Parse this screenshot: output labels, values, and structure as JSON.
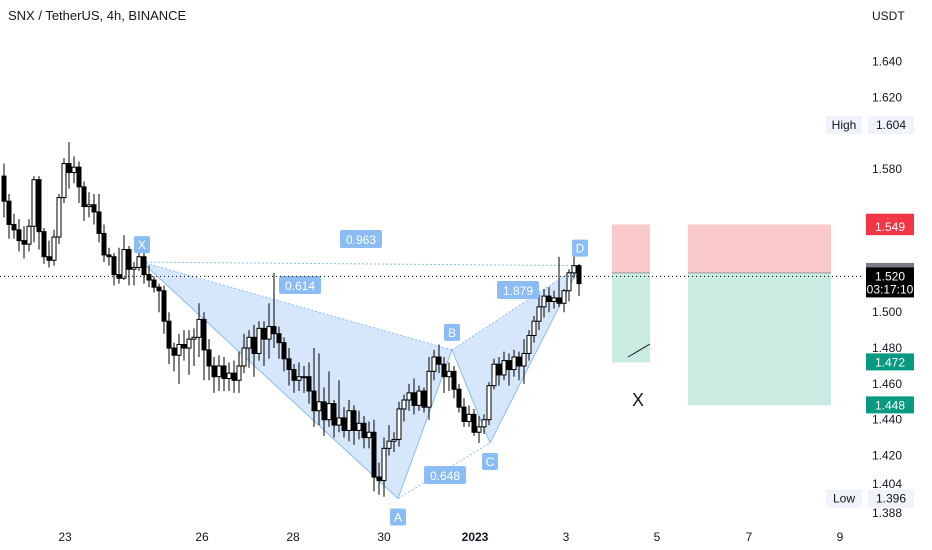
{
  "header": {
    "title": "SNX / TetherUS, 4h, BINANCE"
  },
  "axis": {
    "currency": "USDT",
    "y_ticks": [
      "1.640",
      "1.620",
      "1.580",
      "1.500",
      "1.480",
      "1.460",
      "1.440",
      "1.420",
      "1.404",
      "1.388"
    ],
    "x_ticks": [
      "23",
      "26",
      "28",
      "30",
      "2023",
      "3",
      "5",
      "7",
      "9"
    ]
  },
  "labels": {
    "high_label": "High",
    "high_value": "1.604",
    "low_label": "Low",
    "low_value": "1.396",
    "price_now": "1.520",
    "countdown": "03:17:10",
    "stop_upper": "1.550",
    "stop_lower": "1.549",
    "entry_upper": "1.523",
    "entry_lower": "1.522",
    "target_1": "1.472",
    "target_2": "1.448"
  },
  "pattern": {
    "points": [
      "X",
      "A",
      "B",
      "C",
      "D"
    ],
    "ratios": [
      "0.963",
      "0.614",
      "0.648",
      "1.879"
    ]
  },
  "colors": {
    "up": "#ffffff",
    "down": "#000000",
    "pattern_fill": "#cfe3fa",
    "pattern_label": "#8bbcf4",
    "risk_zone": "#f9c9cb",
    "reward_zone": "#c9ebe1",
    "stop_tag": "#f23645",
    "target_tag": "#089981",
    "entry_tag": "#787b86",
    "price_tag": "#000000"
  },
  "chart_data": {
    "type": "candlestick",
    "symbol": "SNX / TetherUS",
    "interval": "4h",
    "exchange": "BINANCE",
    "ylim": [
      1.384,
      1.652
    ],
    "candles": [
      [
        1.576,
        1.562,
        1.583,
        1.553
      ],
      [
        1.562,
        1.549,
        1.566,
        1.541
      ],
      [
        1.549,
        1.546,
        1.555,
        1.541
      ],
      [
        1.546,
        1.54,
        1.552,
        1.534
      ],
      [
        1.54,
        1.538,
        1.548,
        1.53
      ],
      [
        1.538,
        1.548,
        1.552,
        1.534
      ],
      [
        1.548,
        1.574,
        1.576,
        1.539
      ],
      [
        1.574,
        1.545,
        1.576,
        1.535
      ],
      [
        1.545,
        1.531,
        1.547,
        1.527
      ],
      [
        1.531,
        1.529,
        1.54,
        1.525
      ],
      [
        1.529,
        1.542,
        1.546,
        1.526
      ],
      [
        1.542,
        1.564,
        1.566,
        1.538
      ],
      [
        1.564,
        1.583,
        1.586,
        1.561
      ],
      [
        1.583,
        1.578,
        1.595,
        1.569
      ],
      [
        1.578,
        1.581,
        1.587,
        1.572
      ],
      [
        1.581,
        1.57,
        1.584,
        1.561
      ],
      [
        1.57,
        1.559,
        1.573,
        1.551
      ],
      [
        1.559,
        1.56,
        1.567,
        1.553
      ],
      [
        1.56,
        1.556,
        1.566,
        1.549
      ],
      [
        1.556,
        1.544,
        1.566,
        1.539
      ],
      [
        1.544,
        1.532,
        1.549,
        1.528
      ],
      [
        1.532,
        1.531,
        1.536,
        1.526
      ],
      [
        1.531,
        1.521,
        1.533,
        1.515
      ],
      [
        1.521,
        1.519,
        1.536,
        1.516
      ],
      [
        1.519,
        1.535,
        1.543,
        1.518
      ],
      [
        1.535,
        1.524,
        1.537,
        1.515
      ],
      [
        1.524,
        1.525,
        1.528,
        1.515
      ],
      [
        1.525,
        1.531,
        1.534,
        1.523
      ],
      [
        1.531,
        1.521,
        1.534,
        1.516
      ],
      [
        1.521,
        1.518,
        1.526,
        1.514
      ],
      [
        1.518,
        1.514,
        1.52,
        1.511
      ],
      [
        1.514,
        1.512,
        1.516,
        1.5
      ],
      [
        1.512,
        1.495,
        1.515,
        1.488
      ],
      [
        1.495,
        1.48,
        1.5,
        1.471
      ],
      [
        1.48,
        1.476,
        1.483,
        1.467
      ],
      [
        1.476,
        1.482,
        1.488,
        1.46
      ],
      [
        1.482,
        1.48,
        1.49,
        1.473
      ],
      [
        1.48,
        1.485,
        1.49,
        1.465
      ],
      [
        1.485,
        1.486,
        1.491,
        1.47
      ],
      [
        1.486,
        1.496,
        1.505,
        1.475
      ],
      [
        1.496,
        1.479,
        1.5,
        1.462
      ],
      [
        1.479,
        1.47,
        1.485,
        1.462
      ],
      [
        1.47,
        1.464,
        1.475,
        1.455
      ],
      [
        1.464,
        1.47,
        1.476,
        1.456
      ],
      [
        1.47,
        1.463,
        1.475,
        1.456
      ],
      [
        1.463,
        1.466,
        1.472,
        1.456
      ],
      [
        1.466,
        1.462,
        1.473,
        1.455
      ],
      [
        1.462,
        1.47,
        1.478,
        1.455
      ],
      [
        1.47,
        1.48,
        1.488,
        1.466
      ],
      [
        1.48,
        1.486,
        1.49,
        1.469
      ],
      [
        1.486,
        1.477,
        1.493,
        1.464
      ],
      [
        1.477,
        1.491,
        1.495,
        1.473
      ],
      [
        1.491,
        1.485,
        1.495,
        1.47
      ],
      [
        1.485,
        1.492,
        1.505,
        1.474
      ],
      [
        1.492,
        1.488,
        1.522,
        1.48
      ],
      [
        1.488,
        1.483,
        1.492,
        1.474
      ],
      [
        1.483,
        1.474,
        1.486,
        1.467
      ],
      [
        1.474,
        1.468,
        1.48,
        1.459
      ],
      [
        1.468,
        1.462,
        1.471,
        1.455
      ],
      [
        1.462,
        1.464,
        1.472,
        1.456
      ],
      [
        1.464,
        1.464,
        1.47,
        1.455
      ],
      [
        1.464,
        1.456,
        1.472,
        1.449
      ],
      [
        1.456,
        1.445,
        1.48,
        1.436
      ],
      [
        1.445,
        1.45,
        1.477,
        1.437
      ],
      [
        1.45,
        1.44,
        1.458,
        1.431
      ],
      [
        1.44,
        1.449,
        1.467,
        1.436
      ],
      [
        1.449,
        1.437,
        1.451,
        1.43
      ],
      [
        1.437,
        1.441,
        1.462,
        1.433
      ],
      [
        1.441,
        1.434,
        1.447,
        1.43
      ],
      [
        1.434,
        1.445,
        1.451,
        1.428
      ],
      [
        1.445,
        1.434,
        1.448,
        1.426
      ],
      [
        1.434,
        1.438,
        1.445,
        1.429
      ],
      [
        1.438,
        1.43,
        1.442,
        1.424
      ],
      [
        1.43,
        1.433,
        1.439,
        1.424
      ],
      [
        1.433,
        1.408,
        1.44,
        1.4
      ],
      [
        1.408,
        1.406,
        1.416,
        1.398
      ],
      [
        1.406,
        1.424,
        1.43,
        1.397
      ],
      [
        1.424,
        1.428,
        1.437,
        1.42
      ],
      [
        1.428,
        1.429,
        1.433,
        1.422
      ],
      [
        1.429,
        1.446,
        1.45,
        1.425
      ],
      [
        1.446,
        1.451,
        1.454,
        1.439
      ],
      [
        1.451,
        1.455,
        1.46,
        1.445
      ],
      [
        1.455,
        1.448,
        1.463,
        1.443
      ],
      [
        1.448,
        1.456,
        1.459,
        1.445
      ],
      [
        1.456,
        1.447,
        1.458,
        1.444
      ],
      [
        1.447,
        1.467,
        1.475,
        1.44
      ],
      [
        1.467,
        1.475,
        1.479,
        1.462
      ],
      [
        1.475,
        1.471,
        1.482,
        1.466
      ],
      [
        1.471,
        1.464,
        1.475,
        1.455
      ],
      [
        1.464,
        1.467,
        1.472,
        1.456
      ],
      [
        1.467,
        1.457,
        1.47,
        1.452
      ],
      [
        1.457,
        1.447,
        1.46,
        1.444
      ],
      [
        1.447,
        1.439,
        1.452,
        1.436
      ],
      [
        1.439,
        1.443,
        1.448,
        1.436
      ],
      [
        1.443,
        1.433,
        1.446,
        1.431
      ],
      [
        1.433,
        1.436,
        1.442,
        1.427
      ],
      [
        1.436,
        1.44,
        1.443,
        1.432
      ],
      [
        1.44,
        1.459,
        1.461,
        1.437
      ],
      [
        1.459,
        1.471,
        1.474,
        1.457
      ],
      [
        1.471,
        1.465,
        1.475,
        1.459
      ],
      [
        1.465,
        1.473,
        1.478,
        1.462
      ],
      [
        1.473,
        1.468,
        1.477,
        1.459
      ],
      [
        1.468,
        1.475,
        1.479,
        1.464
      ],
      [
        1.475,
        1.47,
        1.478,
        1.462
      ],
      [
        1.47,
        1.477,
        1.485,
        1.46
      ],
      [
        1.477,
        1.487,
        1.49,
        1.473
      ],
      [
        1.487,
        1.495,
        1.498,
        1.483
      ],
      [
        1.495,
        1.503,
        1.51,
        1.49
      ],
      [
        1.503,
        1.509,
        1.513,
        1.497
      ],
      [
        1.509,
        1.506,
        1.514,
        1.5
      ],
      [
        1.506,
        1.508,
        1.512,
        1.502
      ],
      [
        1.508,
        1.505,
        1.531,
        1.503
      ],
      [
        1.505,
        1.512,
        1.513,
        1.5
      ],
      [
        1.512,
        1.522,
        1.524,
        1.506
      ],
      [
        1.522,
        1.526,
        1.535,
        1.519
      ],
      [
        1.526,
        1.516,
        1.527,
        1.509
      ]
    ],
    "harmonic_pattern": {
      "points": [
        {
          "label": "X",
          "price": 1.528
        },
        {
          "label": "A",
          "price": 1.396
        },
        {
          "label": "B",
          "price": 1.479
        },
        {
          "label": "C",
          "price": 1.427
        },
        {
          "label": "D",
          "price": 1.526
        }
      ],
      "ratios": [
        "0.963",
        "0.614",
        "0.648",
        "1.879"
      ]
    },
    "positions": [
      {
        "type": "short",
        "entry": 1.522,
        "stop": 1.549,
        "target": 1.472
      },
      {
        "type": "short",
        "entry": 1.522,
        "stop": 1.549,
        "target": 1.448
      }
    ],
    "current_price": 1.52,
    "high": 1.604,
    "low": 1.396
  }
}
